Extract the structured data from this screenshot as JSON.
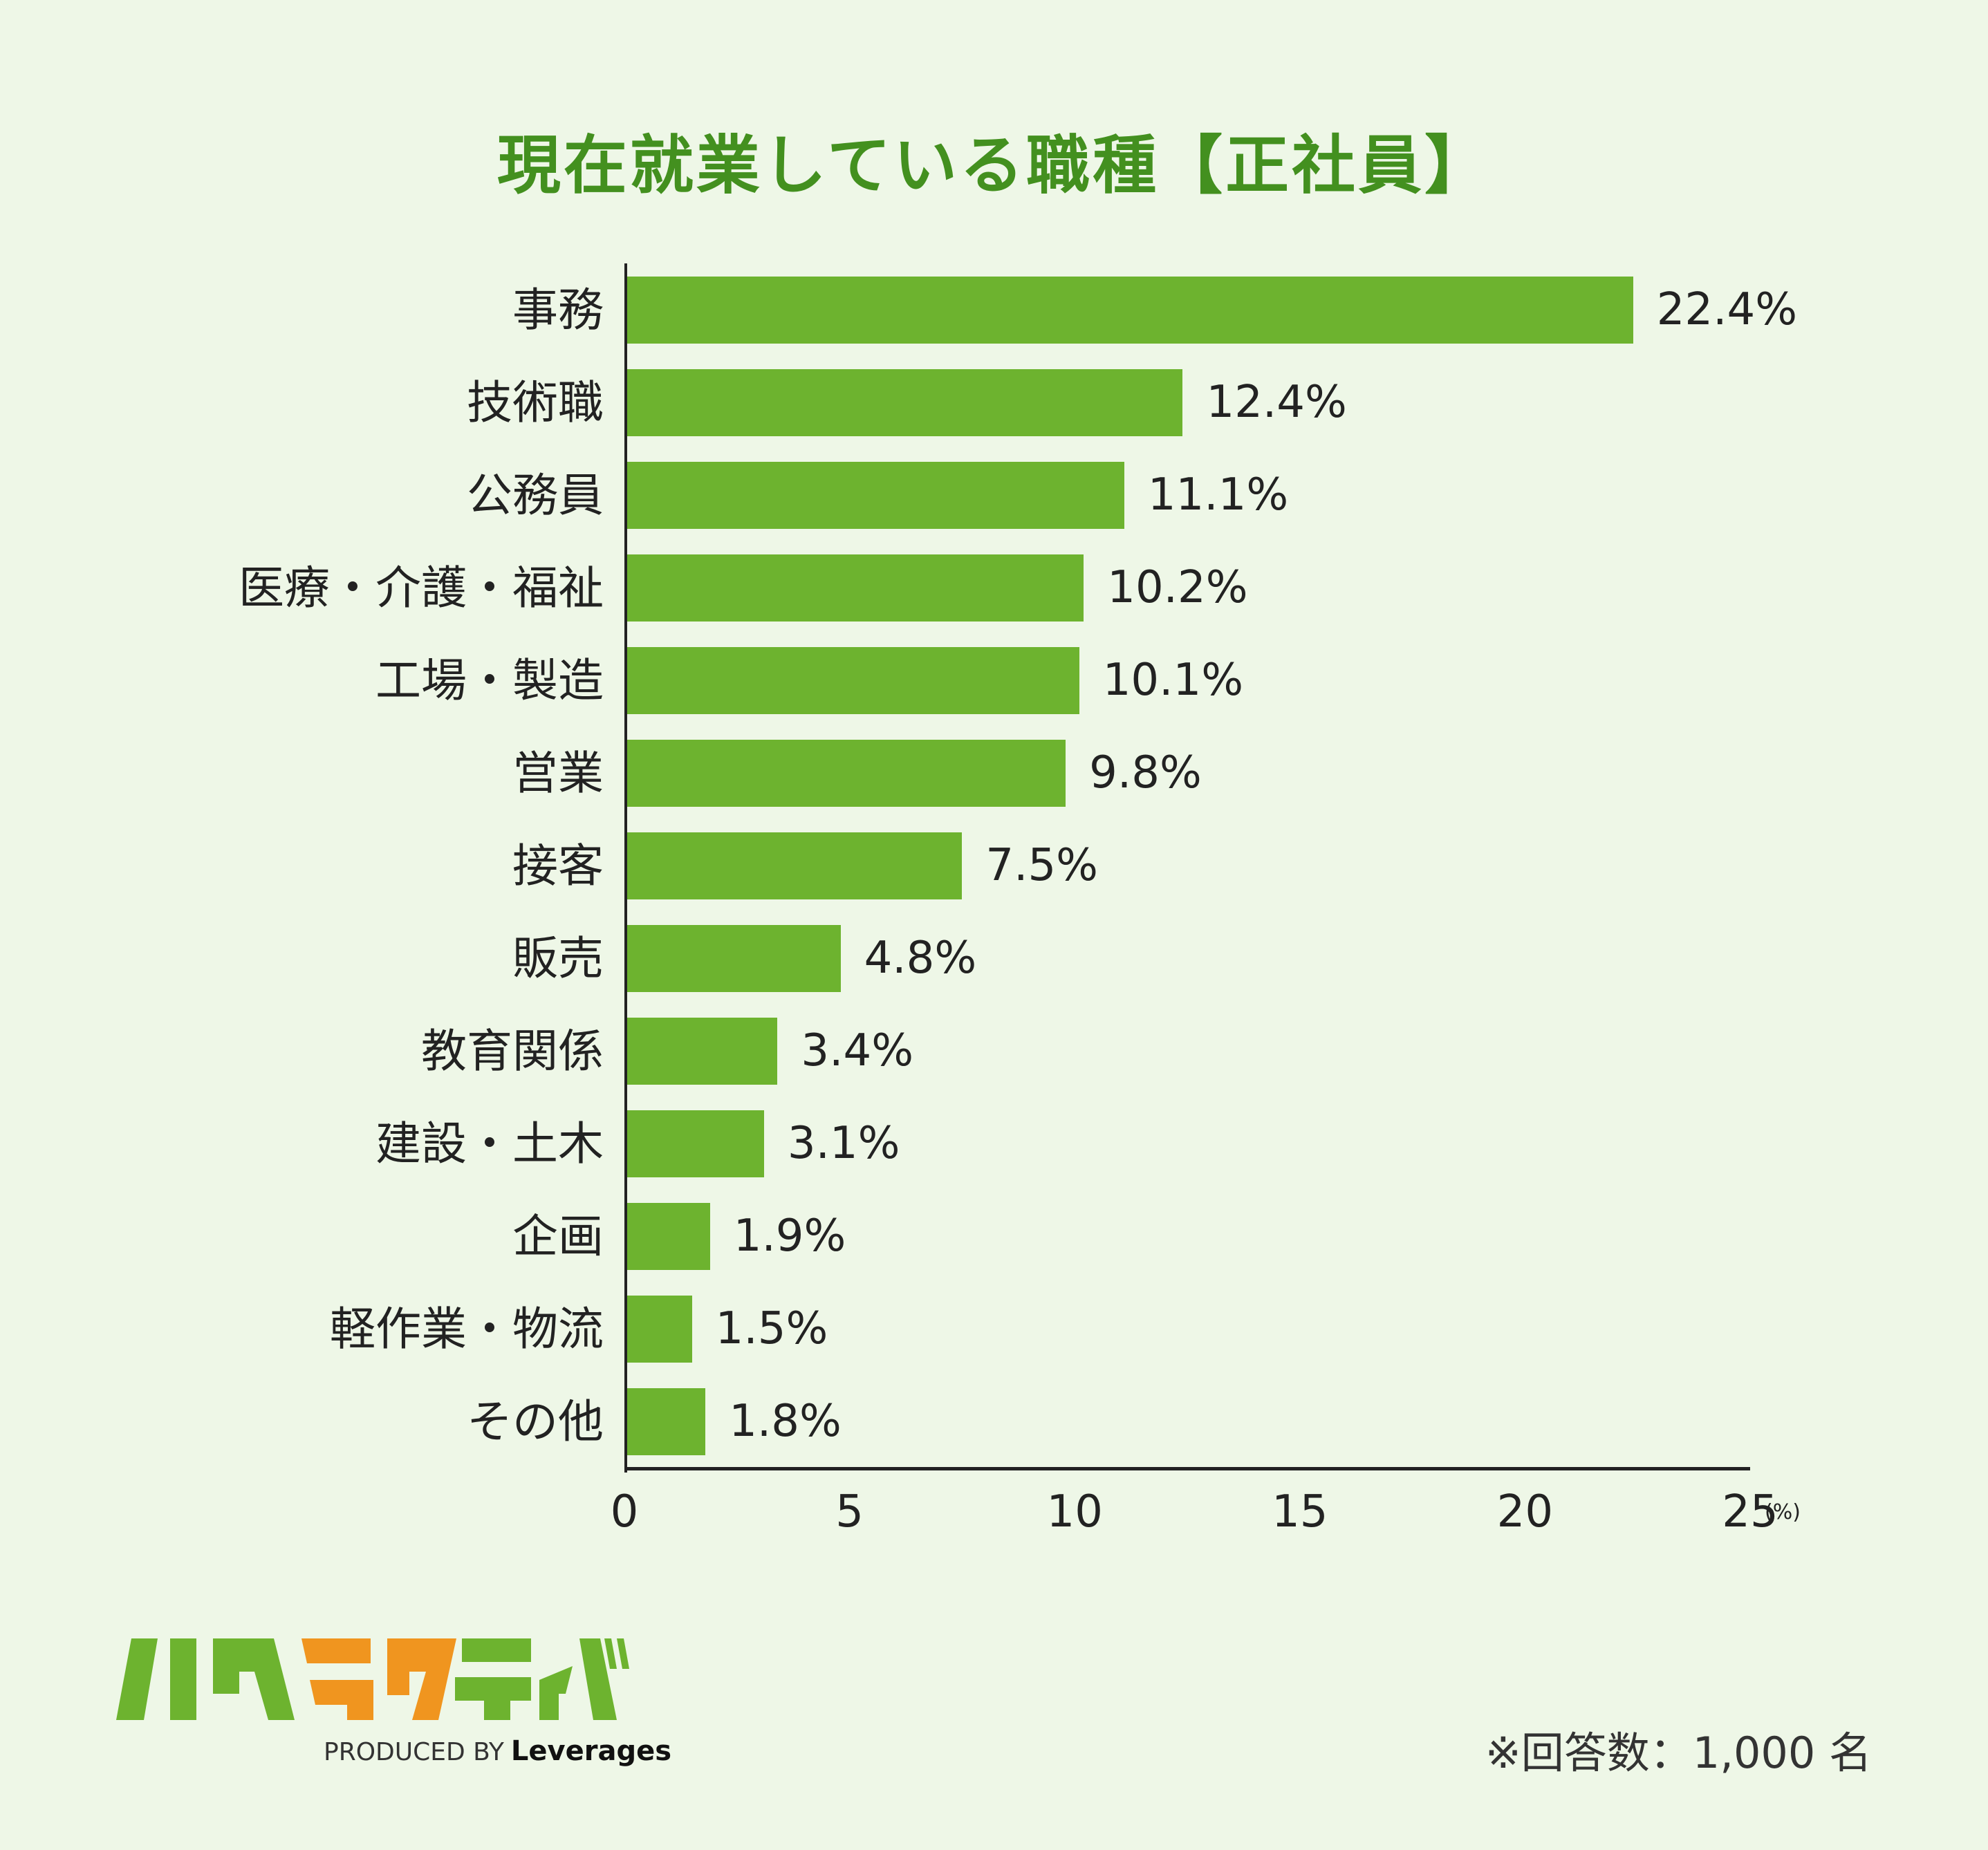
{
  "title": "現在就業している職種【正社員】",
  "chart_data": {
    "type": "bar",
    "orientation": "horizontal",
    "title": "現在就業している職種【正社員】",
    "xlabel": "(%)",
    "ylabel": "",
    "xlim": [
      0,
      25
    ],
    "xticks": [
      "0",
      "5",
      "10",
      "15",
      "20",
      "25"
    ],
    "grid": false,
    "legend": null,
    "categories": [
      "事務",
      "技術職",
      "公務員",
      "医療・介護・福祉",
      "工場・製造",
      "営業",
      "接客",
      "販売",
      "教育関係",
      "建設・土木",
      "企画",
      "軽作業・物流",
      "その他"
    ],
    "values": [
      22.4,
      12.4,
      11.1,
      10.2,
      10.1,
      9.8,
      7.5,
      4.8,
      3.4,
      3.1,
      1.9,
      1.5,
      1.8
    ],
    "value_labels": [
      "22.4%",
      "12.4%",
      "11.1%",
      "10.2%",
      "10.1%",
      "9.8%",
      "7.5%",
      "4.8%",
      "3.4%",
      "3.1%",
      "1.9%",
      "1.5%",
      "1.8%"
    ],
    "bar_color": "#6db32f"
  },
  "axis": {
    "unit": "(%)"
  },
  "note": "※回答数：1,000 名",
  "logo": {
    "name": "ハタラクティブ",
    "produced_by": "PRODUCED BY",
    "company": "Leverages",
    "colors": {
      "green": "#6db32f",
      "orange": "#f0951f"
    }
  },
  "colors": {
    "background": "#eef7e7",
    "title": "#43901f",
    "bar": "#6db32f",
    "text": "#222222"
  }
}
